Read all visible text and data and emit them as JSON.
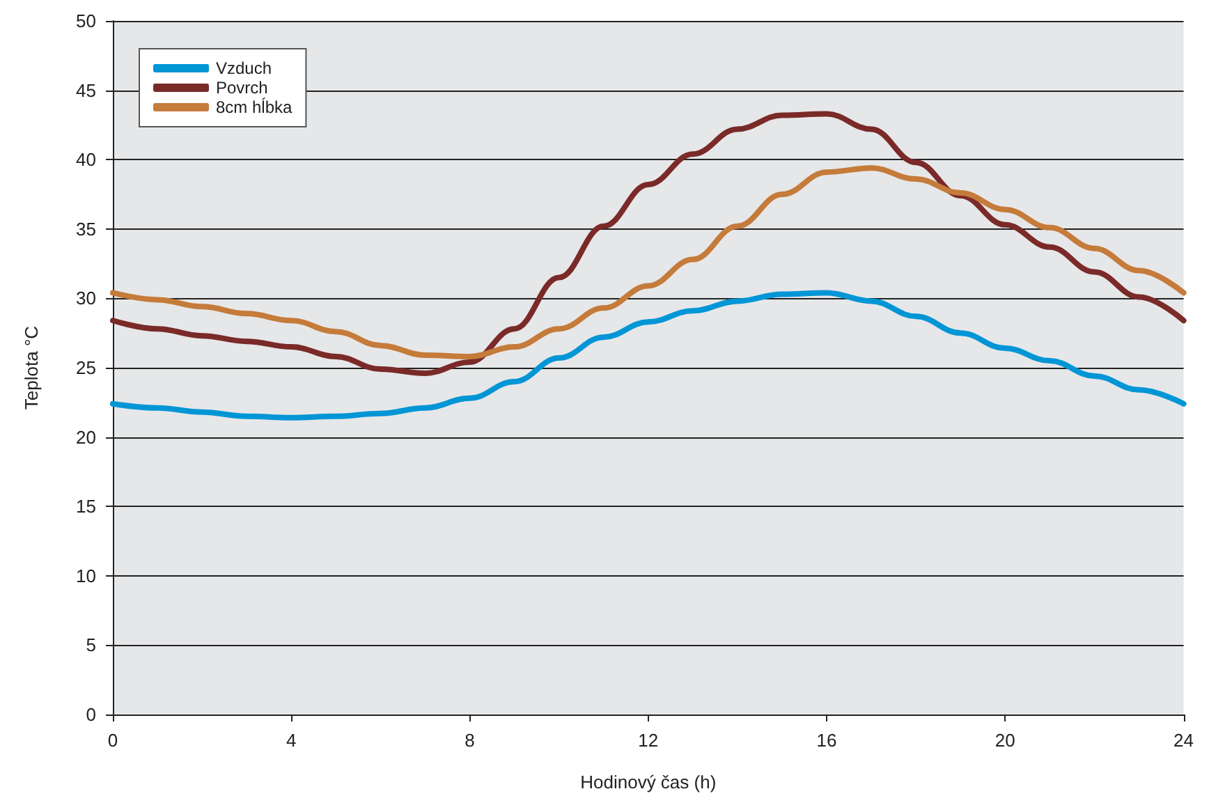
{
  "chart_data": {
    "type": "line",
    "xlabel": "Hodinový čas (h)",
    "ylabel": "Teplota °C",
    "x": [
      0,
      1,
      2,
      3,
      4,
      5,
      6,
      7,
      8,
      9,
      10,
      11,
      12,
      13,
      14,
      15,
      16,
      17,
      18,
      19,
      20,
      21,
      22,
      23,
      24
    ],
    "series": [
      {
        "name": "Vzduch",
        "color": "#0096d6",
        "values": [
          22.4,
          22.1,
          21.8,
          21.5,
          21.4,
          21.5,
          21.7,
          22.1,
          22.8,
          24,
          25.7,
          27.2,
          28.3,
          29.1,
          29.8,
          30.3,
          30.4,
          29.8,
          28.7,
          27.5,
          26.4,
          25.5,
          24.4,
          23.4,
          22.4
        ]
      },
      {
        "name": "Povrch",
        "color": "#7a2a28",
        "values": [
          28.4,
          27.8,
          27.3,
          26.9,
          26.5,
          25.8,
          24.9,
          24.6,
          25.4,
          27.8,
          31.5,
          35.2,
          38.2,
          40.4,
          42.2,
          43.2,
          43.3,
          42.2,
          39.8,
          37.4,
          35.3,
          33.7,
          31.9,
          30.1,
          28.4
        ]
      },
      {
        "name": "8cm hĺbka",
        "color": "#c57b3a",
        "values": [
          30.4,
          29.9,
          29.4,
          28.9,
          28.4,
          27.6,
          26.6,
          25.9,
          25.8,
          26.5,
          27.8,
          29.3,
          30.9,
          32.8,
          35.2,
          37.5,
          39.1,
          39.4,
          38.6,
          37.6,
          36.4,
          35.1,
          33.6,
          32,
          30.4
        ]
      }
    ],
    "xlim": [
      0,
      24
    ],
    "xticks": [
      0,
      4,
      8,
      12,
      16,
      20,
      24
    ],
    "ylim": [
      0,
      50
    ],
    "yticks": [
      0,
      5,
      10,
      15,
      20,
      25,
      30,
      35,
      40,
      45,
      50
    ],
    "grid": "y",
    "legend": "top left",
    "marker": "none",
    "line_style": "solid"
  }
}
